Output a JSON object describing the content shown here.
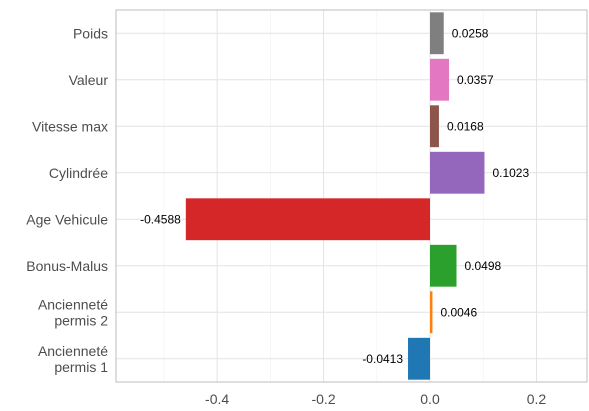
{
  "chart_data": {
    "type": "bar",
    "orientation": "horizontal",
    "categories": [
      [
        "Poids"
      ],
      [
        "Valeur"
      ],
      [
        "Vitesse max"
      ],
      [
        "Cylindrée"
      ],
      [
        "Age Vehicule"
      ],
      [
        "Bonus-Malus"
      ],
      [
        "Ancienneté",
        "permis 2"
      ],
      [
        "Ancienneté",
        "permis 1"
      ]
    ],
    "values": [
      0.0258,
      0.0357,
      0.0168,
      0.1023,
      -0.4588,
      0.0498,
      0.0046,
      -0.0413
    ],
    "data_labels": [
      "0.0258",
      "0.0357",
      "0.0168",
      "0.1023",
      "-0.4588",
      "0.0498",
      "0.0046",
      "-0.0413"
    ],
    "colors": [
      "#7f7f7f",
      "#e377c2",
      "#8c564b",
      "#9467bd",
      "#d62728",
      "#2ca02c",
      "#ff7f0e",
      "#1f77b4"
    ],
    "xlim": [
      -0.59,
      0.295
    ],
    "xticks": [
      -0.4,
      -0.2,
      0.0,
      0.2
    ],
    "xtick_labels": [
      "-0.4",
      "-0.2",
      "0.0",
      "0.2"
    ],
    "xminor": [
      -0.5,
      -0.3,
      -0.1,
      0.1
    ],
    "grid": true,
    "title": "",
    "xlabel": "",
    "ylabel": ""
  }
}
